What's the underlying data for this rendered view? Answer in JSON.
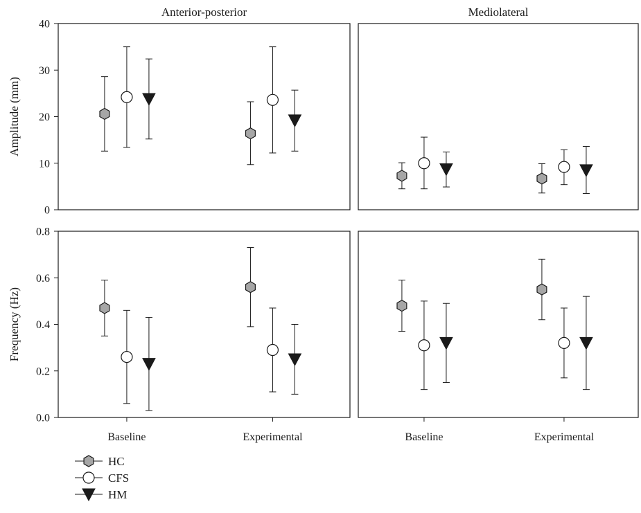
{
  "chart_data": {
    "type": "scatter",
    "column_titles": [
      "Anterior-posterior",
      "Mediolateral"
    ],
    "categories": [
      "Baseline",
      "Experimental"
    ],
    "legend": {
      "placement": "bottom-left",
      "entries": [
        {
          "name": "HC",
          "marker": "hexagon",
          "color": "#a6a6a6"
        },
        {
          "name": "CFS",
          "marker": "circle",
          "color": "#ffffff"
        },
        {
          "name": "HM",
          "marker": "triangle-down",
          "color": "#1a1a1a"
        }
      ]
    },
    "rows": [
      {
        "ylabel": "Amplitude (mm)",
        "ylim": [
          0,
          40
        ],
        "yticks": [
          "0",
          "10",
          "20",
          "30",
          "40"
        ],
        "panels": [
          {
            "column": "Anterior-posterior",
            "series": [
              {
                "name": "HC",
                "values": [
                  20.6,
                  16.4
                ],
                "lower": [
                  12.6,
                  9.7
                ],
                "upper": [
                  28.6,
                  23.2
                ]
              },
              {
                "name": "CFS",
                "values": [
                  24.2,
                  23.6
                ],
                "lower": [
                  13.4,
                  12.2
                ],
                "upper": [
                  35.0,
                  35.0
                ]
              },
              {
                "name": "HM",
                "values": [
                  23.8,
                  19.2
                ],
                "lower": [
                  15.2,
                  12.6
                ],
                "upper": [
                  32.4,
                  25.7
                ]
              }
            ]
          },
          {
            "column": "Mediolateral",
            "series": [
              {
                "name": "HC",
                "values": [
                  7.3,
                  6.7
                ],
                "lower": [
                  4.5,
                  3.6
                ],
                "upper": [
                  10.1,
                  9.9
                ]
              },
              {
                "name": "CFS",
                "values": [
                  10.0,
                  9.2
                ],
                "lower": [
                  4.5,
                  5.4
                ],
                "upper": [
                  15.6,
                  12.9
                ]
              },
              {
                "name": "HM",
                "values": [
                  8.7,
                  8.5
                ],
                "lower": [
                  4.9,
                  3.5
                ],
                "upper": [
                  12.4,
                  13.6
                ]
              }
            ]
          }
        ]
      },
      {
        "ylabel": "Frequency (Hz)",
        "ylim": [
          0,
          0.8
        ],
        "yticks": [
          "0.0",
          "0.2",
          "0.4",
          "0.6",
          "0.8"
        ],
        "panels": [
          {
            "column": "Anterior-posterior",
            "series": [
              {
                "name": "HC",
                "values": [
                  0.47,
                  0.56
                ],
                "lower": [
                  0.35,
                  0.39
                ],
                "upper": [
                  0.59,
                  0.73
                ]
              },
              {
                "name": "CFS",
                "values": [
                  0.26,
                  0.29
                ],
                "lower": [
                  0.06,
                  0.11
                ],
                "upper": [
                  0.46,
                  0.47
                ]
              },
              {
                "name": "HM",
                "values": [
                  0.23,
                  0.25
                ],
                "lower": [
                  0.03,
                  0.1
                ],
                "upper": [
                  0.43,
                  0.4
                ]
              }
            ]
          },
          {
            "column": "Mediolateral",
            "series": [
              {
                "name": "HC",
                "values": [
                  0.48,
                  0.55
                ],
                "lower": [
                  0.37,
                  0.42
                ],
                "upper": [
                  0.59,
                  0.68
                ]
              },
              {
                "name": "CFS",
                "values": [
                  0.31,
                  0.32
                ],
                "lower": [
                  0.12,
                  0.17
                ],
                "upper": [
                  0.5,
                  0.47
                ]
              },
              {
                "name": "HM",
                "values": [
                  0.32,
                  0.32
                ],
                "lower": [
                  0.15,
                  0.12
                ],
                "upper": [
                  0.49,
                  0.52
                ]
              }
            ]
          }
        ]
      }
    ]
  }
}
